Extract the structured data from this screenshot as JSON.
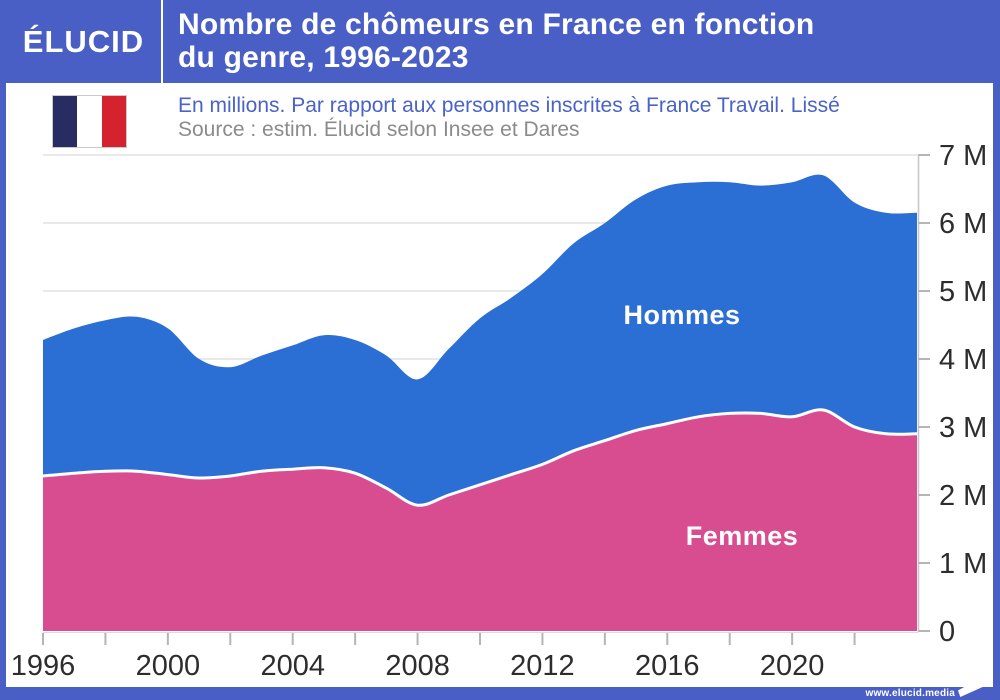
{
  "header": {
    "logo_text": "ÉLUCID",
    "title_line1": "Nombre de chômeurs en France en fonction",
    "title_line2": "du genre, 1996-2023"
  },
  "subtitle": {
    "line1": "En millions. Par rapport aux personnes inscrites à France Travail. Lissé",
    "source": "Source : estim. Élucid selon Insee et Dares"
  },
  "footer": {
    "url": "www.elucid.media"
  },
  "colors": {
    "brand_blue": "#4a5fc6",
    "hommes_blue": "#2b6fd4",
    "femmes_pink": "#d84d90",
    "subtitle_blue": "#4a63c8",
    "source_gray": "#8b8b8b",
    "axis_text": "#2d2d2d",
    "gridline": "#e2e2e2",
    "spine": "#c5c5c5",
    "tick": "#b5b5b5",
    "flag_navy": "#272c63",
    "flag_red": "#d4232e"
  },
  "chart_data": {
    "type": "area",
    "stacked": true,
    "title": "Nombre de chômeurs en France en fonction du genre, 1996-2023",
    "y_unit": "millions",
    "ylim": [
      0,
      7
    ],
    "x_range": [
      1996,
      2024
    ],
    "grid": "horizontal",
    "legend_position": "inline-labels",
    "x": [
      1996,
      1997,
      1998,
      1999,
      2000,
      2001,
      2002,
      2003,
      2004,
      2005,
      2006,
      2007,
      2008,
      2009,
      2010,
      2011,
      2012,
      2013,
      2014,
      2015,
      2016,
      2017,
      2018,
      2019,
      2020,
      2021,
      2022,
      2023
    ],
    "series": [
      {
        "name": "Femmes",
        "color": "#d84d90",
        "values": [
          2.28,
          2.32,
          2.35,
          2.35,
          2.3,
          2.25,
          2.28,
          2.35,
          2.38,
          2.4,
          2.32,
          2.1,
          1.85,
          2.0,
          2.15,
          2.3,
          2.45,
          2.65,
          2.8,
          2.95,
          3.05,
          3.15,
          3.2,
          3.2,
          3.15,
          3.25,
          3.0,
          2.9
        ]
      },
      {
        "name": "Hommes",
        "color": "#2b6fd4",
        "values": [
          2.0,
          2.13,
          2.22,
          2.27,
          2.15,
          1.75,
          1.6,
          1.7,
          1.82,
          1.95,
          1.96,
          1.95,
          1.85,
          2.15,
          2.45,
          2.6,
          2.8,
          3.05,
          3.2,
          3.4,
          3.5,
          3.45,
          3.4,
          3.35,
          3.45,
          3.45,
          3.3,
          3.25
        ]
      }
    ],
    "y_ticks": [
      {
        "value": 0,
        "label": "0"
      },
      {
        "value": 1,
        "label": "1 M"
      },
      {
        "value": 2,
        "label": "2 M"
      },
      {
        "value": 3,
        "label": "3 M"
      },
      {
        "value": 4,
        "label": "4 M"
      },
      {
        "value": 5,
        "label": "5 M"
      },
      {
        "value": 6,
        "label": "6 M"
      },
      {
        "value": 7,
        "label": "7 M"
      }
    ],
    "x_ticks": [
      {
        "year": 1996,
        "label": "1996"
      },
      {
        "year": 1998,
        "label": ""
      },
      {
        "year": 2000,
        "label": "2000"
      },
      {
        "year": 2002,
        "label": ""
      },
      {
        "year": 2004,
        "label": "2004"
      },
      {
        "year": 2006,
        "label": ""
      },
      {
        "year": 2008,
        "label": "2008"
      },
      {
        "year": 2010,
        "label": ""
      },
      {
        "year": 2012,
        "label": "2012"
      },
      {
        "year": 2014,
        "label": ""
      },
      {
        "year": 2016,
        "label": "2016"
      },
      {
        "year": 2018,
        "label": ""
      },
      {
        "year": 2020,
        "label": "2020"
      },
      {
        "year": 2022,
        "label": ""
      }
    ]
  }
}
